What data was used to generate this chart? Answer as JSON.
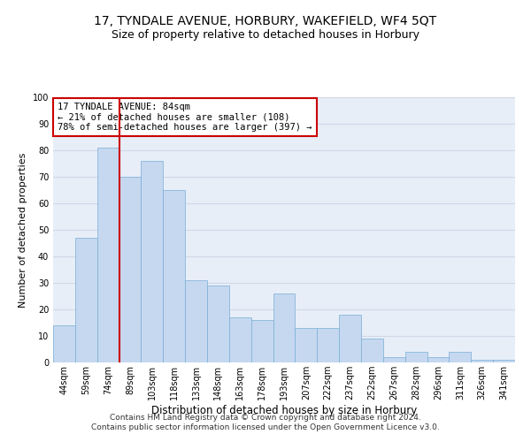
{
  "title": "17, TYNDALE AVENUE, HORBURY, WAKEFIELD, WF4 5QT",
  "subtitle": "Size of property relative to detached houses in Horbury",
  "xlabel": "Distribution of detached houses by size in Horbury",
  "ylabel": "Number of detached properties",
  "categories": [
    "44sqm",
    "59sqm",
    "74sqm",
    "89sqm",
    "103sqm",
    "118sqm",
    "133sqm",
    "148sqm",
    "163sqm",
    "178sqm",
    "193sqm",
    "207sqm",
    "222sqm",
    "237sqm",
    "252sqm",
    "267sqm",
    "282sqm",
    "296sqm",
    "311sqm",
    "326sqm",
    "341sqm"
  ],
  "values": [
    14,
    47,
    81,
    70,
    76,
    65,
    31,
    29,
    17,
    16,
    26,
    13,
    13,
    18,
    9,
    2,
    4,
    2,
    4,
    1,
    1
  ],
  "bar_color": "#c5d8f0",
  "bar_edge_color": "#7aadd4",
  "vline_color": "#cc0000",
  "vline_x_index": 2.5,
  "annotation_text": "17 TYNDALE AVENUE: 84sqm\n← 21% of detached houses are smaller (108)\n78% of semi-detached houses are larger (397) →",
  "annotation_box_color": "#ffffff",
  "annotation_box_edge_color": "#cc0000",
  "ylim": [
    0,
    100
  ],
  "yticks": [
    0,
    10,
    20,
    30,
    40,
    50,
    60,
    70,
    80,
    90,
    100
  ],
  "grid_color": "#d0d8e8",
  "background_color": "#e8eef8",
  "footer_line1": "Contains HM Land Registry data © Crown copyright and database right 2024.",
  "footer_line2": "Contains public sector information licensed under the Open Government Licence v3.0.",
  "title_fontsize": 10,
  "subtitle_fontsize": 9,
  "xlabel_fontsize": 8.5,
  "ylabel_fontsize": 8,
  "tick_fontsize": 7,
  "annotation_fontsize": 7.5,
  "footer_fontsize": 6.5
}
